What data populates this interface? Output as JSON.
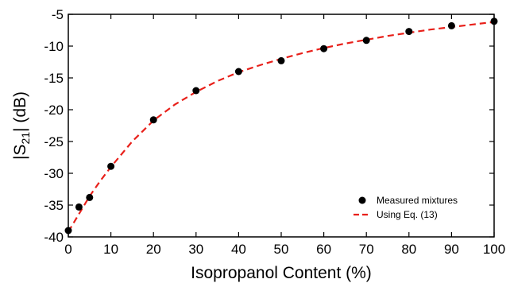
{
  "chart_data": {
    "type": "scatter",
    "xlabel": "Isopropanol Content (%)",
    "ylabel": {
      "prefix": "|S",
      "sub": "21",
      "suffix": "| (dB)"
    },
    "xlim": [
      0,
      100
    ],
    "ylim": [
      -40,
      -5
    ],
    "xticks": [
      0,
      10,
      20,
      30,
      40,
      50,
      60,
      70,
      80,
      90,
      100
    ],
    "yticks": [
      -40,
      -35,
      -30,
      -25,
      -20,
      -15,
      -10,
      -5
    ],
    "grid": false,
    "legend_position": "bottom-right",
    "series": [
      {
        "name": "Measured mixtures",
        "kind": "scatter",
        "color": "#000000",
        "x": [
          0,
          2.5,
          5,
          10,
          20,
          30,
          40,
          50,
          60,
          70,
          80,
          90,
          100
        ],
        "y": [
          -39.0,
          -35.3,
          -33.8,
          -28.9,
          -21.6,
          -17.0,
          -14.0,
          -12.3,
          -10.4,
          -9.1,
          -7.7,
          -6.8,
          -6.1
        ]
      },
      {
        "name": "Using Eq. (13)",
        "kind": "line",
        "style": "dashed",
        "color": "#e8201a",
        "x": [
          0,
          2.5,
          5,
          7.5,
          10,
          15,
          20,
          25,
          30,
          35,
          40,
          45,
          50,
          55,
          60,
          65,
          70,
          75,
          80,
          85,
          90,
          95,
          100
        ],
        "y": [
          -39.2,
          -36.4,
          -33.6,
          -31.2,
          -29.0,
          -25.0,
          -21.7,
          -19.2,
          -17.2,
          -15.5,
          -14.1,
          -13.0,
          -12.0,
          -11.1,
          -10.3,
          -9.6,
          -9.0,
          -8.4,
          -7.9,
          -7.4,
          -7.0,
          -6.6,
          -6.2
        ]
      }
    ]
  }
}
